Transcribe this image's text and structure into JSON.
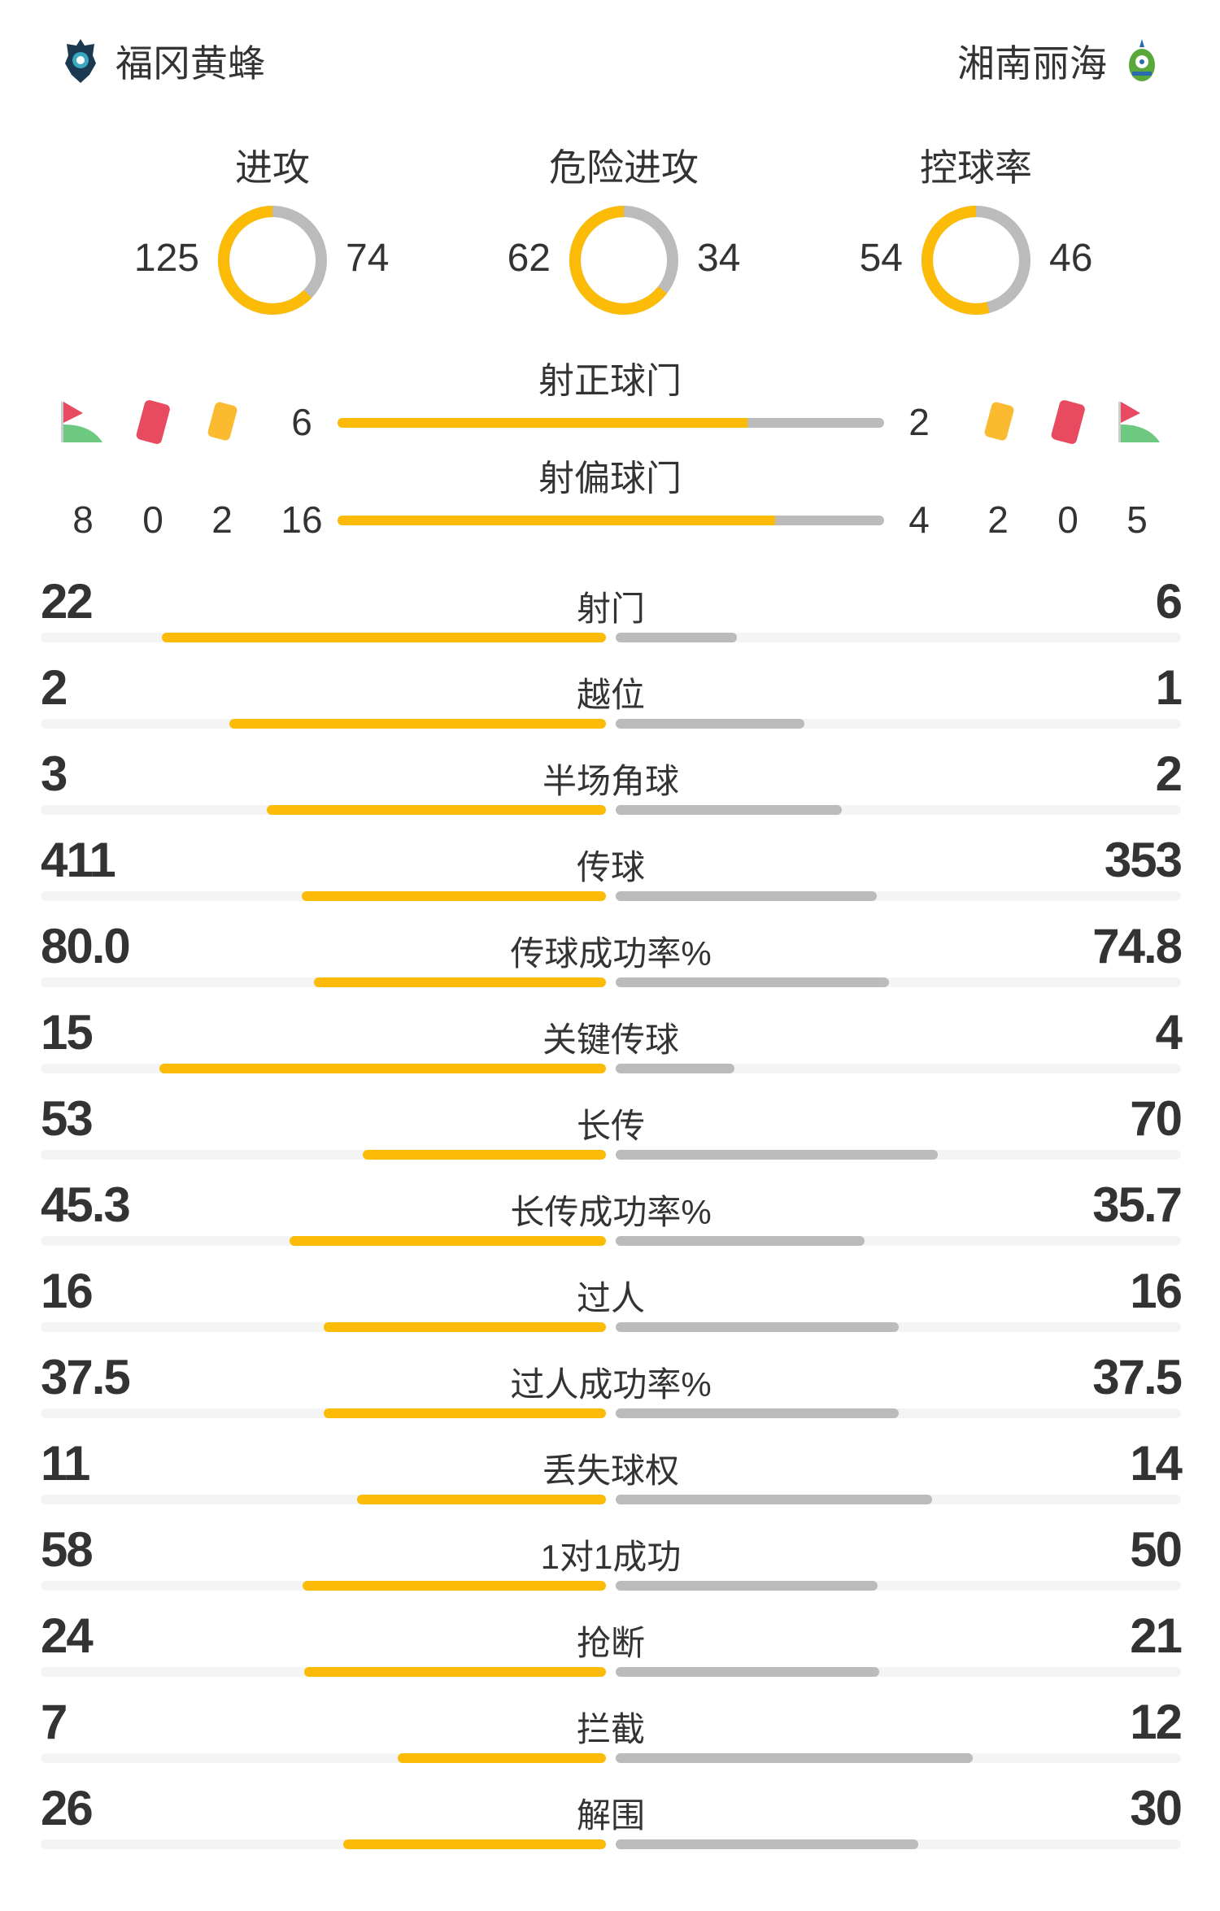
{
  "home": {
    "name": "福冈黄蜂",
    "crest": "avispa-fukuoka-crest-icon"
  },
  "away": {
    "name": "湘南丽海",
    "crest": "shonan-bellmare-crest-icon"
  },
  "colors": {
    "home": "#fbbb06",
    "away": "#bbbbbb",
    "track": "#f4f4f4",
    "red_card": "#e84a5f",
    "yellow_card": "#fbbb30",
    "corner_flag": "#6cc97f"
  },
  "donuts": [
    {
      "title": "进攻",
      "home": 125,
      "away": 74
    },
    {
      "title": "危险进攻",
      "home": 62,
      "away": 34
    },
    {
      "title": "控球率",
      "home": 54,
      "away": 46
    }
  ],
  "shots_on_target": {
    "title": "射正球门",
    "home": 6,
    "away": 2
  },
  "shots_off_target": {
    "title": "射偏球门",
    "home": 16,
    "away": 4
  },
  "home_events": {
    "corners": 8,
    "red_cards": 0,
    "yellow_cards": 2
  },
  "away_events": {
    "corners": 5,
    "red_cards": 0,
    "yellow_cards": 2
  },
  "stats": [
    {
      "label": "射门",
      "home": "22",
      "away": "6"
    },
    {
      "label": "越位",
      "home": "2",
      "away": "1"
    },
    {
      "label": "半场角球",
      "home": "3",
      "away": "2"
    },
    {
      "label": "传球",
      "home": "411",
      "away": "353"
    },
    {
      "label": "传球成功率%",
      "home": "80.0",
      "away": "74.8"
    },
    {
      "label": "关键传球",
      "home": "15",
      "away": "4"
    },
    {
      "label": "长传",
      "home": "53",
      "away": "70"
    },
    {
      "label": "长传成功率%",
      "home": "45.3",
      "away": "35.7"
    },
    {
      "label": "过人",
      "home": "16",
      "away": "16"
    },
    {
      "label": "过人成功率%",
      "home": "37.5",
      "away": "37.5"
    },
    {
      "label": "丢失球权",
      "home": "11",
      "away": "14"
    },
    {
      "label": "1对1成功",
      "home": "58",
      "away": "50"
    },
    {
      "label": "抢断",
      "home": "24",
      "away": "21"
    },
    {
      "label": "拦截",
      "home": "7",
      "away": "12"
    },
    {
      "label": "解围",
      "home": "26",
      "away": "30"
    }
  ]
}
